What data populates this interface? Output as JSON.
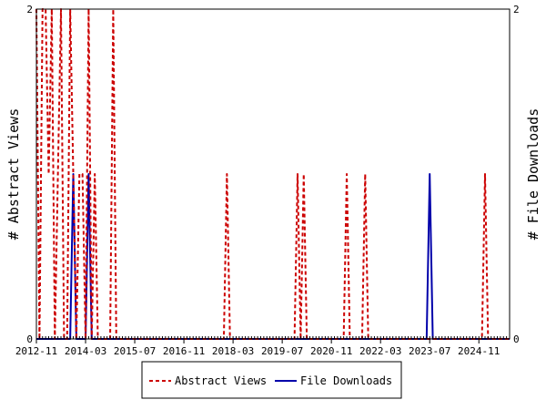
{
  "chart_data": {
    "type": "line",
    "ylabel_left": "# Abstract Views",
    "ylabel_right": "# File Downloads",
    "ylim_left": [
      0,
      2
    ],
    "ylim_right": [
      0,
      2
    ],
    "left_ticks": [
      "0",
      "2"
    ],
    "right_ticks": [
      "0",
      "2"
    ],
    "x_range": [
      "2012-11",
      "2025-09"
    ],
    "x_ticks": [
      "2012-11",
      "2014-03",
      "2015-07",
      "2016-11",
      "2018-03",
      "2019-07",
      "2020-11",
      "2022-03",
      "2023-07",
      "2024-11"
    ],
    "legend_position": "bottom-center",
    "series": [
      {
        "name": "Abstract Views",
        "color": "#cc0000",
        "style": "dashed",
        "axis": "left",
        "points": [
          [
            "2012-11",
            2
          ],
          [
            "2012-12",
            0
          ],
          [
            "2013-01",
            2
          ],
          [
            "2013-02",
            2
          ],
          [
            "2013-03",
            1
          ],
          [
            "2013-04",
            2
          ],
          [
            "2013-05",
            0
          ],
          [
            "2013-06",
            1
          ],
          [
            "2013-07",
            2
          ],
          [
            "2013-08",
            0
          ],
          [
            "2013-09",
            0
          ],
          [
            "2013-10",
            2
          ],
          [
            "2013-11",
            1
          ],
          [
            "2013-12",
            0
          ],
          [
            "2014-01",
            1
          ],
          [
            "2014-02",
            1
          ],
          [
            "2014-03",
            0
          ],
          [
            "2014-04",
            2
          ],
          [
            "2014-05",
            0
          ],
          [
            "2014-06",
            1
          ],
          [
            "2014-07",
            0
          ],
          [
            "2014-08",
            0
          ],
          [
            "2014-09",
            0
          ],
          [
            "2014-10",
            0
          ],
          [
            "2014-11",
            0
          ],
          [
            "2014-12",
            2
          ],
          [
            "2015-01",
            0
          ],
          [
            "2017-12",
            0
          ],
          [
            "2018-01",
            1
          ],
          [
            "2018-02",
            0
          ],
          [
            "2019-11",
            0
          ],
          [
            "2019-12",
            1
          ],
          [
            "2020-01",
            0
          ],
          [
            "2020-02",
            1
          ],
          [
            "2020-03",
            0
          ],
          [
            "2021-03",
            0
          ],
          [
            "2021-04",
            1
          ],
          [
            "2021-05",
            0
          ],
          [
            "2021-09",
            0
          ],
          [
            "2021-10",
            1
          ],
          [
            "2021-11",
            0
          ],
          [
            "2024-12",
            0
          ],
          [
            "2025-01",
            1
          ],
          [
            "2025-02",
            0
          ]
        ]
      },
      {
        "name": "File Downloads",
        "color": "#0000aa",
        "style": "solid",
        "axis": "right",
        "points": [
          [
            "2013-10",
            0
          ],
          [
            "2013-11",
            1
          ],
          [
            "2013-12",
            0
          ],
          [
            "2014-03",
            0
          ],
          [
            "2014-04",
            1
          ],
          [
            "2014-05",
            0
          ],
          [
            "2023-06",
            0
          ],
          [
            "2023-07",
            1
          ],
          [
            "2023-08",
            0
          ]
        ]
      }
    ]
  }
}
